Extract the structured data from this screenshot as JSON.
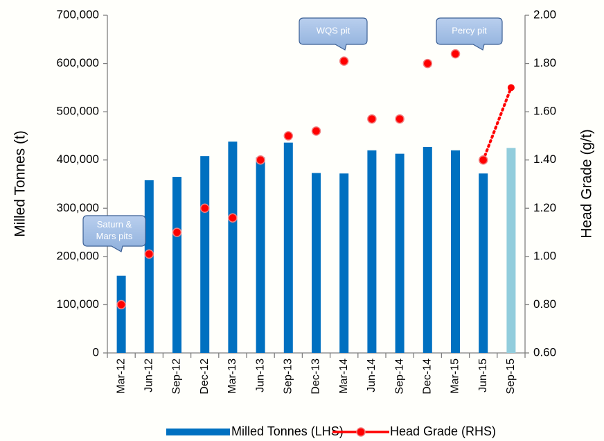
{
  "chart_data": {
    "type": "bar_line",
    "categories": [
      "Mar-12",
      "Jun-12",
      "Sep-12",
      "Dec-12",
      "Mar-13",
      "Jun-13",
      "Sep-13",
      "Dec-13",
      "Mar-14",
      "Jun-14",
      "Sep-14",
      "Dec-14",
      "Mar-15",
      "Jun-15",
      "Sep-15"
    ],
    "series": [
      {
        "name": "Milled Tonnes (LHS)",
        "type": "bar",
        "color": "#0070c0",
        "colors": [
          "#0070c0",
          "#0070c0",
          "#0070c0",
          "#0070c0",
          "#0070c0",
          "#0070c0",
          "#0070c0",
          "#0070c0",
          "#0070c0",
          "#0070c0",
          "#0070c0",
          "#0070c0",
          "#0070c0",
          "#0070c0",
          "#92cddc"
        ],
        "values": [
          160000,
          358000,
          365000,
          408000,
          438000,
          405000,
          436000,
          373000,
          372000,
          420000,
          413000,
          427000,
          420000,
          372000,
          425000
        ]
      },
      {
        "name": "Head Grade (RHS)",
        "type": "line",
        "axis": "y2",
        "color": "#ff0000",
        "dotted": [
          false,
          false,
          false,
          false,
          false,
          false,
          false,
          false,
          false,
          false,
          false,
          false,
          false,
          false,
          true
        ],
        "values": [
          0.8,
          1.01,
          1.1,
          1.2,
          1.16,
          1.4,
          1.5,
          1.52,
          1.81,
          1.57,
          1.57,
          1.8,
          1.84,
          1.4,
          1.7
        ]
      }
    ],
    "ylabel": "Milled Tonnes (t)",
    "y2label": "Head Grade (g/t)",
    "ylim": [
      0,
      700000
    ],
    "yticks": [
      0,
      {
        "value": 100000,
        "label": "100,000"
      },
      {
        "value": 200000,
        "label": "200,000"
      },
      {
        "value": 300000,
        "label": "300,000"
      },
      {
        "value": 400000,
        "label": "400,000"
      },
      {
        "value": 500000,
        "label": "500,000"
      },
      {
        "value": 600000,
        "label": "600,000"
      },
      {
        "value": 700000,
        "label": "700,000"
      }
    ],
    "y2lim": [
      0.6,
      2.0
    ],
    "y2ticks": [
      {
        "value": 0.6,
        "label": "0.60"
      },
      {
        "value": 0.8,
        "label": "0.80"
      },
      {
        "value": 1.0,
        "label": "1.00"
      },
      {
        "value": 1.2,
        "label": "1.20"
      },
      {
        "value": 1.4,
        "label": "1.40"
      },
      {
        "value": 1.6,
        "label": "1.60"
      },
      {
        "value": 1.8,
        "label": "1.80"
      },
      {
        "value": 2.0,
        "label": "2.00"
      }
    ],
    "annotations": [
      {
        "text": [
          "Saturn &",
          "Mars pits"
        ]
      },
      {
        "text": [
          "WQS pit"
        ]
      },
      {
        "text": [
          "Percy pit"
        ]
      }
    ],
    "legend": "bottom",
    "grid": false
  }
}
